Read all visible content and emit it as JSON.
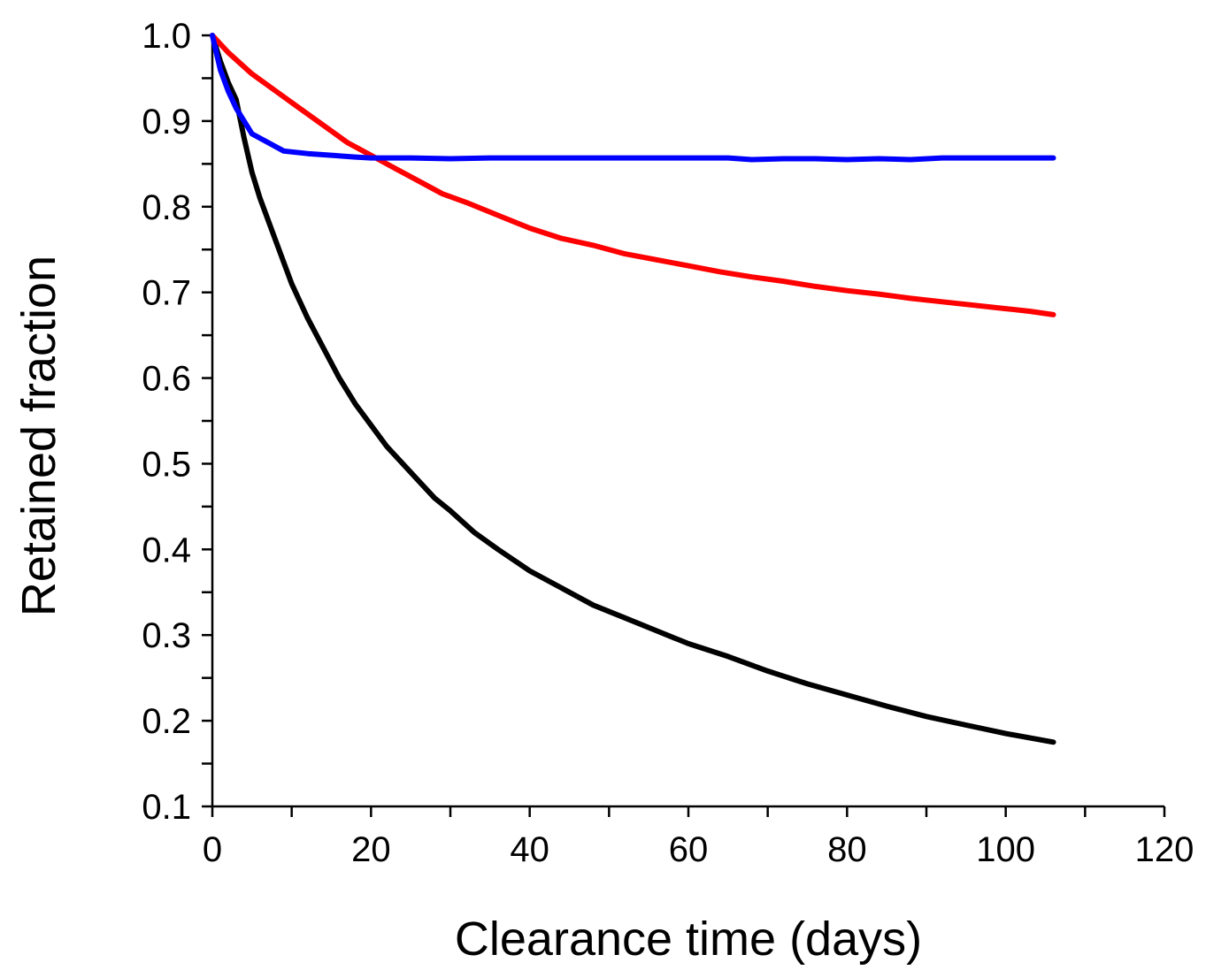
{
  "chart_data": {
    "type": "line",
    "title": "",
    "xlabel": "Clearance time (days)",
    "ylabel": "Retained fraction",
    "xlim": [
      0,
      120
    ],
    "ylim": [
      0.1,
      1.0
    ],
    "x_ticks": [
      "0",
      "20",
      "40",
      "60",
      "80",
      "100",
      "120"
    ],
    "y_ticks": [
      "0.1",
      "0.2",
      "0.3",
      "0.4",
      "0.5",
      "0.6",
      "0.7",
      "0.8",
      "0.9",
      "1.0"
    ],
    "grid": false,
    "legend": "none",
    "series": [
      {
        "color": "#000000",
        "x": [
          0,
          1,
          2,
          3,
          4,
          5,
          6,
          8,
          10,
          12,
          14,
          16,
          18,
          20,
          22,
          24,
          26,
          28,
          30,
          33,
          36,
          40,
          44,
          48,
          52,
          56,
          60,
          65,
          70,
          75,
          80,
          85,
          90,
          95,
          100,
          106
        ],
        "y": [
          1.0,
          0.97,
          0.945,
          0.925,
          0.88,
          0.84,
          0.81,
          0.76,
          0.71,
          0.67,
          0.635,
          0.6,
          0.57,
          0.545,
          0.52,
          0.5,
          0.48,
          0.46,
          0.445,
          0.42,
          0.4,
          0.375,
          0.355,
          0.335,
          0.32,
          0.305,
          0.29,
          0.275,
          0.258,
          0.243,
          0.23,
          0.217,
          0.205,
          0.195,
          0.185,
          0.175
        ]
      },
      {
        "color": "#ff0000",
        "x": [
          0,
          2,
          5,
          8,
          11,
          14,
          17,
          20,
          23,
          26,
          29,
          32,
          36,
          40,
          44,
          48,
          52,
          56,
          60,
          64,
          68,
          72,
          76,
          80,
          84,
          88,
          92,
          96,
          100,
          103,
          106
        ],
        "y": [
          1.0,
          0.98,
          0.955,
          0.935,
          0.915,
          0.895,
          0.875,
          0.86,
          0.845,
          0.83,
          0.815,
          0.805,
          0.79,
          0.775,
          0.763,
          0.755,
          0.745,
          0.738,
          0.731,
          0.724,
          0.718,
          0.713,
          0.707,
          0.702,
          0.698,
          0.693,
          0.689,
          0.685,
          0.681,
          0.678,
          0.674
        ]
      },
      {
        "color": "#0000ff",
        "x": [
          0,
          1,
          2,
          3,
          4,
          5,
          7,
          9,
          12,
          15,
          18,
          20,
          25,
          30,
          35,
          40,
          45,
          50,
          55,
          60,
          65,
          68,
          72,
          76,
          80,
          84,
          88,
          92,
          96,
          100,
          106
        ],
        "y": [
          1.0,
          0.96,
          0.935,
          0.915,
          0.9,
          0.885,
          0.875,
          0.865,
          0.862,
          0.86,
          0.858,
          0.857,
          0.857,
          0.856,
          0.857,
          0.857,
          0.857,
          0.857,
          0.857,
          0.857,
          0.857,
          0.855,
          0.856,
          0.856,
          0.855,
          0.856,
          0.855,
          0.857,
          0.857,
          0.857,
          0.857
        ]
      }
    ]
  }
}
